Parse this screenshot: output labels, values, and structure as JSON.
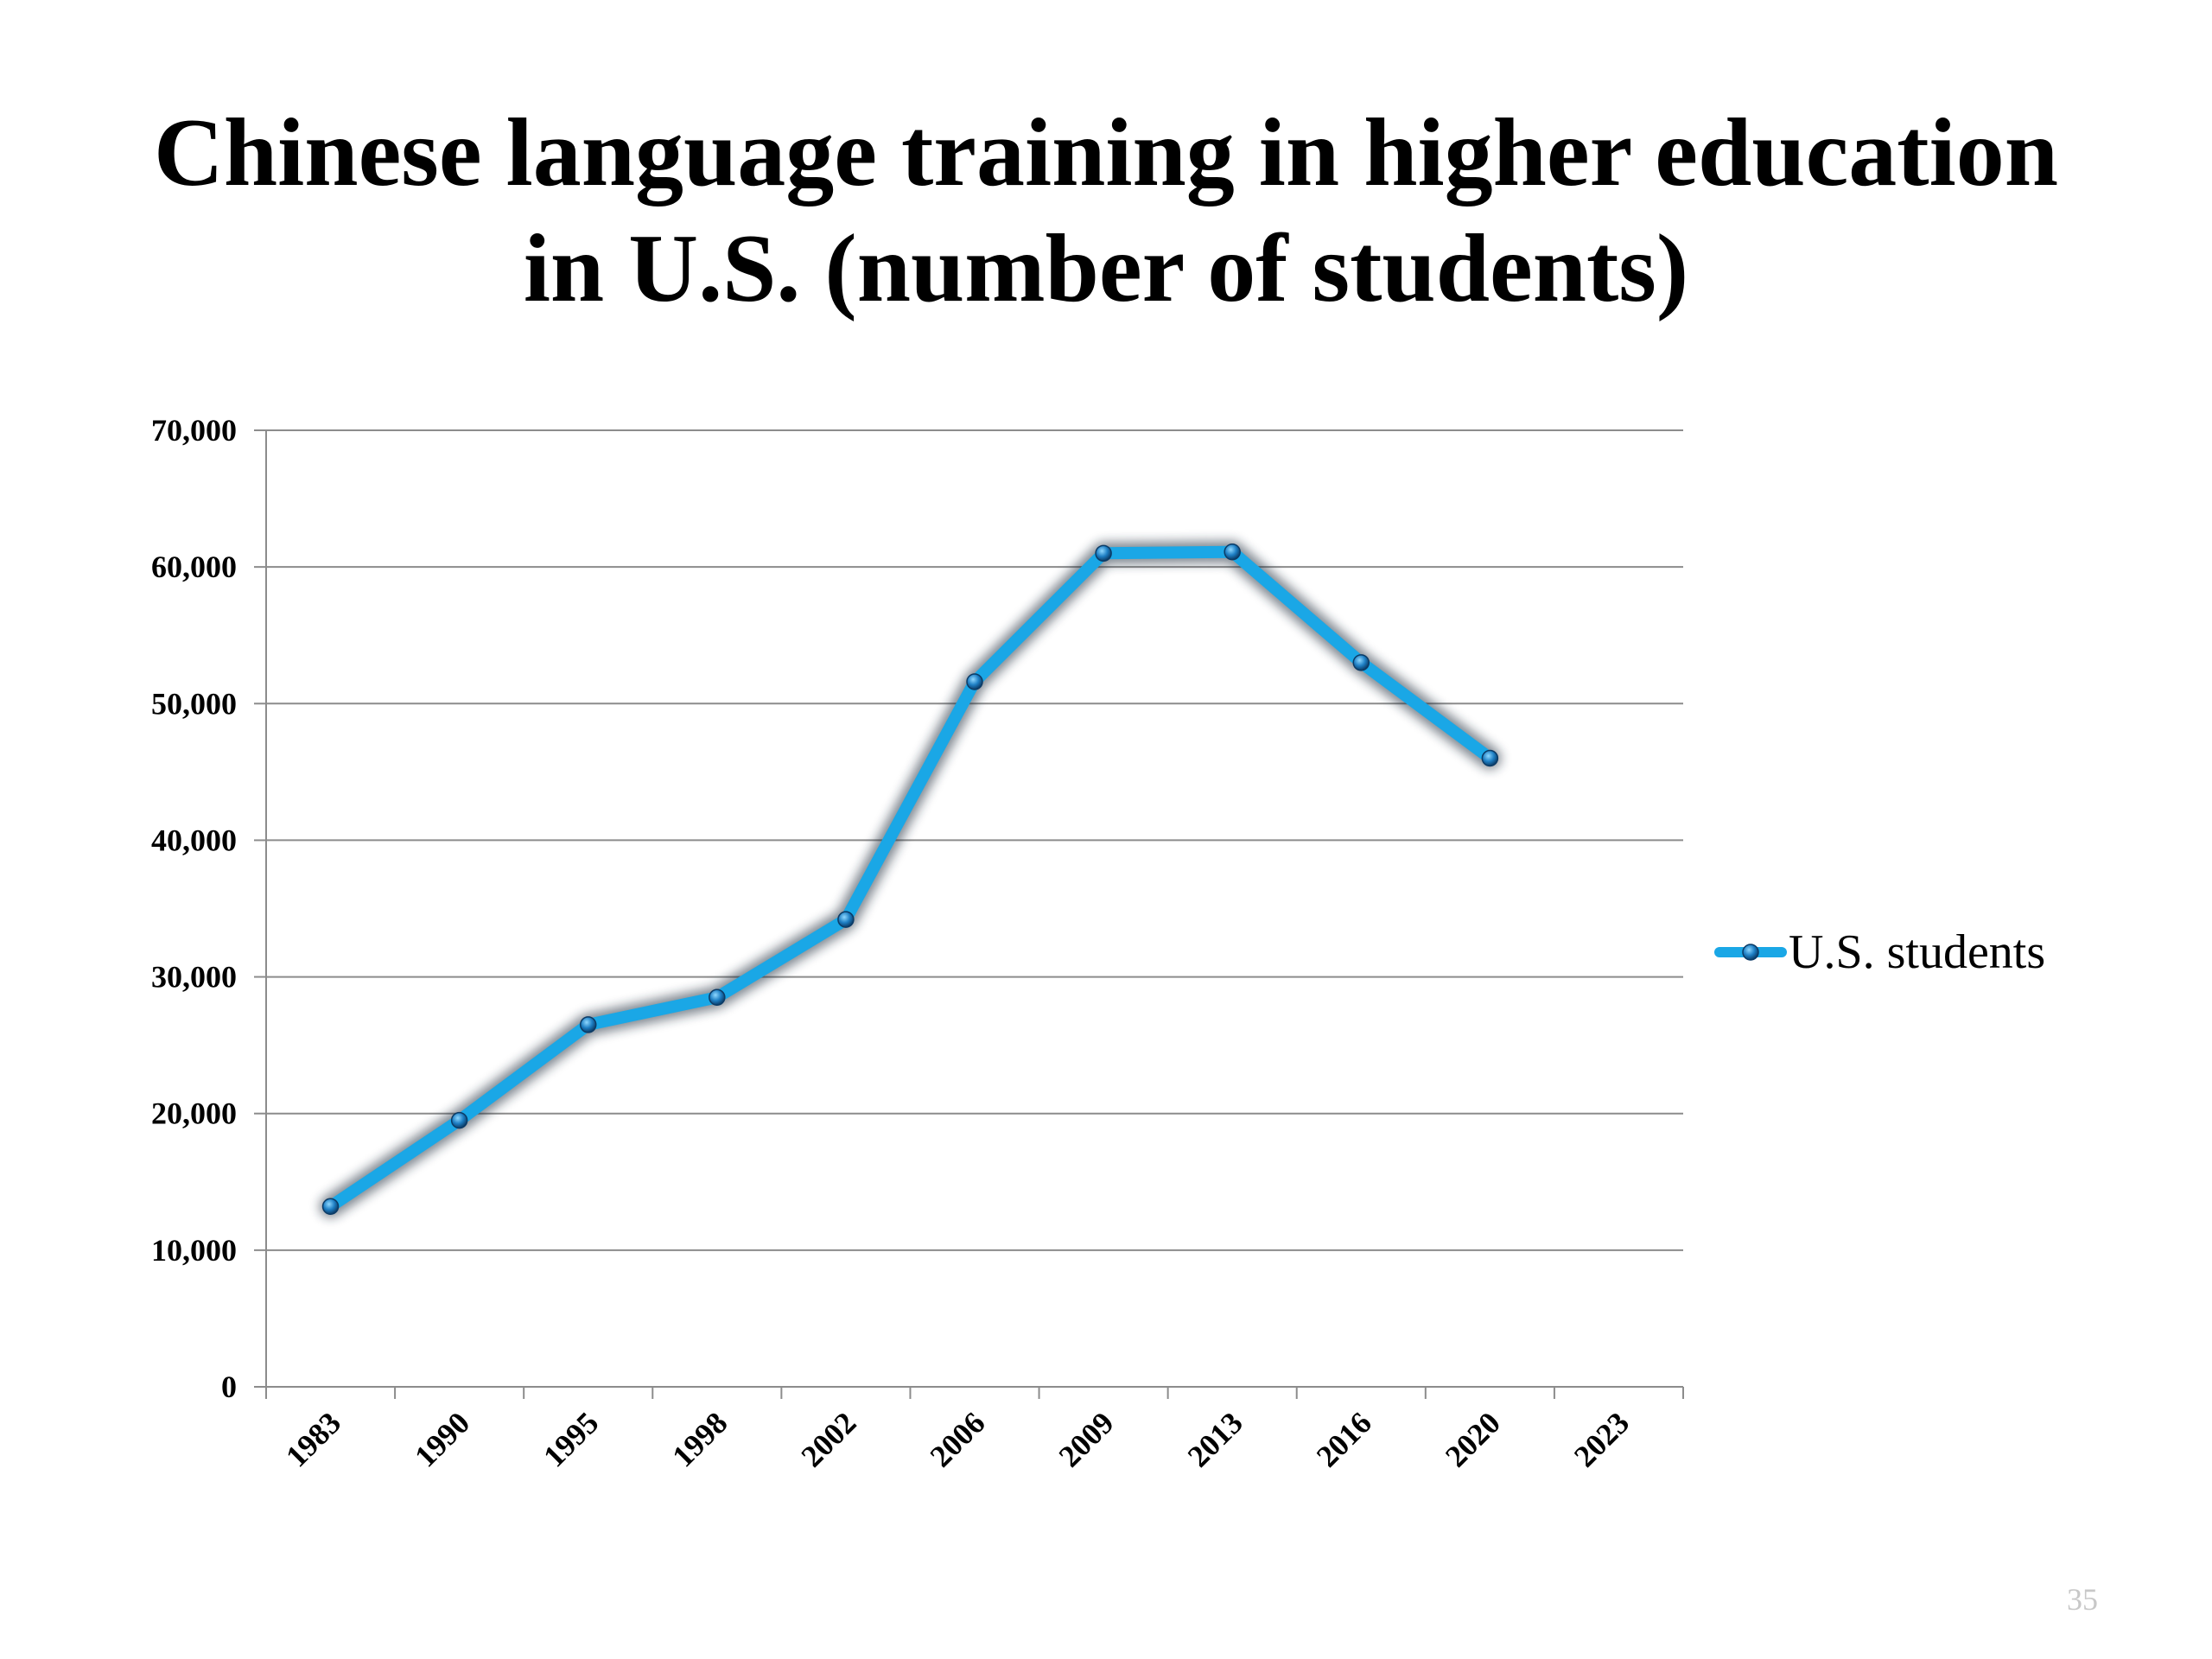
{
  "slide": {
    "title_line1": "Chinese language training in higher education",
    "title_line2": "in U.S. (number of students)",
    "page_number": "35"
  },
  "chart_data": {
    "type": "line",
    "categories": [
      "1983",
      "1990",
      "1995",
      "1998",
      "2002",
      "2006",
      "2009",
      "2013",
      "2016",
      "2020",
      "2023"
    ],
    "series": [
      {
        "name": "U.S. students",
        "values": [
          13200,
          19500,
          26500,
          28500,
          34200,
          51600,
          61000,
          61100,
          53000,
          46000,
          null
        ],
        "color": "#1aa7e6"
      }
    ],
    "yticks": [
      0,
      10000,
      20000,
      30000,
      40000,
      50000,
      60000,
      70000
    ],
    "ytick_labels": [
      "0",
      "10,000",
      "20,000",
      "30,000",
      "40,000",
      "50,000",
      "60,000",
      "70,000"
    ],
    "ylim": [
      0,
      70000
    ],
    "grid": true,
    "legend_position": "right",
    "title": "",
    "xlabel": "",
    "ylabel": ""
  }
}
